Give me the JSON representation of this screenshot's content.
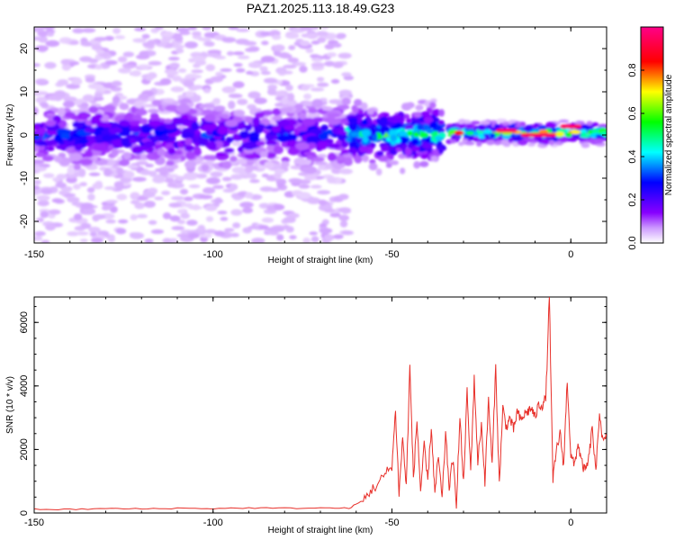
{
  "title": "PAZ1.2025.113.18.49.G23",
  "chart_data": [
    {
      "type": "heatmap",
      "title": "PAZ1.2025.113.18.49.G23",
      "xlabel": "Height of straight line (km)",
      "ylabel": "Frequency (Hz)",
      "xlim": [
        -150,
        10
      ],
      "ylim": [
        -25,
        25
      ],
      "x_ticks": [
        -150,
        -100,
        -50,
        0
      ],
      "y_ticks": [
        -20,
        -10,
        0,
        10,
        20
      ],
      "colorbar": {
        "label": "Normalized spectral amplitude",
        "range": [
          0.0,
          1.0
        ],
        "ticks": [
          "0.0",
          "0.2",
          "0.4",
          "0.6",
          "0.8"
        ],
        "colormap": [
          "#ffffff",
          "#8800ff",
          "#0000ff",
          "#00ffff",
          "#00ff00",
          "#ffff00",
          "#ff0000",
          "#ff0088"
        ]
      },
      "features": [
        {
          "x_range": [
            -150,
            -62
          ],
          "freq_center": 0,
          "freq_spread": 5,
          "amplitude": 0.25,
          "background_spread": 25,
          "background_amplitude": 0.05
        },
        {
          "x_range": [
            -62,
            -36
          ],
          "freq_center": 0,
          "freq_spread": 3,
          "amplitude": 0.45
        },
        {
          "x_range": [
            -34,
            10
          ],
          "freq_center": 0.5,
          "freq_spread": 1.5,
          "amplitude": 0.9
        },
        {
          "x_range": [
            -20,
            -16
          ],
          "freq_center": 1,
          "amplitude": 0.95
        },
        {
          "x_range": [
            -13,
            -5
          ],
          "freq_center": 0,
          "amplitude": 0.95
        },
        {
          "x_range": [
            -2,
            2
          ],
          "freq_center": 2,
          "amplitude": 0.95
        }
      ]
    },
    {
      "type": "line",
      "xlabel": "Height of straight line (km)",
      "ylabel": "SNR (10 * v/v)",
      "xlim": [
        -150,
        10
      ],
      "ylim": [
        0,
        6800
      ],
      "x_ticks": [
        -150,
        -100,
        -50,
        0
      ],
      "y_ticks": [
        0,
        2000,
        4000,
        6000
      ],
      "color": "#e8302a",
      "series": [
        {
          "x": [
            -150,
            -140,
            -130,
            -120,
            -110,
            -100,
            -90,
            -80,
            -70,
            -62,
            -58,
            -56,
            -54,
            -52,
            -50,
            -49,
            -48,
            -47,
            -46,
            -45,
            -44,
            -43,
            -42,
            -41,
            -40,
            -39,
            -38,
            -37,
            -36,
            -35,
            -34,
            -33,
            -32,
            -31,
            -30,
            -29,
            -28,
            -27,
            -26,
            -25,
            -24,
            -23,
            -22,
            -21,
            -20,
            -19,
            -18,
            -17,
            -16,
            -15,
            -14,
            -13,
            -12,
            -11,
            -10,
            -9,
            -8,
            -7,
            -6,
            -5,
            -4,
            -3,
            -2,
            -1,
            0,
            1,
            2,
            3,
            4,
            5,
            6,
            7,
            8,
            9,
            10
          ],
          "y": [
            120,
            110,
            140,
            130,
            150,
            140,
            160,
            150,
            160,
            150,
            400,
            700,
            900,
            1200,
            1500,
            3200,
            600,
            2400,
            800,
            4600,
            1100,
            2900,
            700,
            2100,
            1000,
            2700,
            600,
            1800,
            400,
            2500,
            800,
            1700,
            300,
            3000,
            900,
            3800,
            1300,
            4200,
            1600,
            2800,
            1000,
            3600,
            1500,
            4600,
            900,
            3300,
            2700,
            3000,
            2600,
            3200,
            2900,
            3100,
            3200,
            3300,
            3000,
            3400,
            3400,
            3600,
            6800,
            1000,
            2000,
            2500,
            1500,
            4200,
            1800,
            1500,
            2200,
            1600,
            1300,
            1700,
            2700,
            1200,
            3200,
            2200,
            2400
          ]
        }
      ]
    }
  ]
}
